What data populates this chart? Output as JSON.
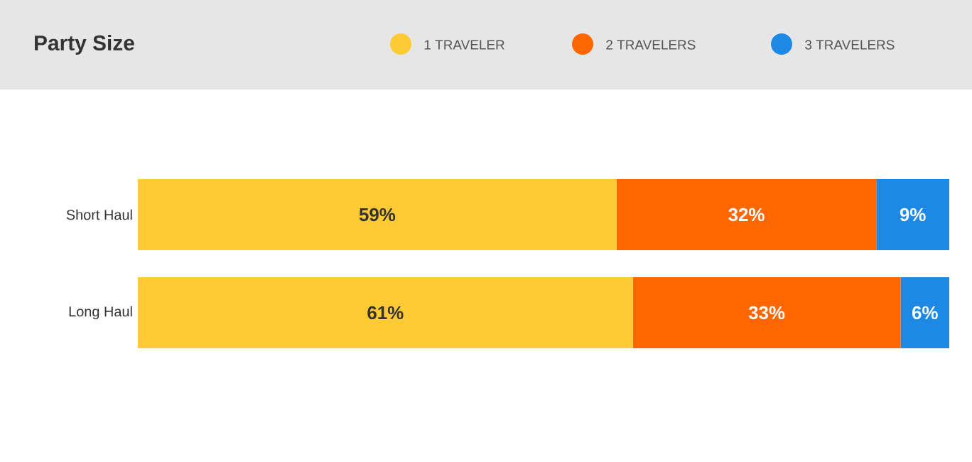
{
  "chart_data": {
    "type": "bar",
    "title": "Party Size",
    "orientation": "horizontal",
    "stacked": true,
    "categories": [
      "Short Haul",
      "Long Haul"
    ],
    "series": [
      {
        "name": "1 TRAVELER",
        "color": "#ffca33",
        "values": [
          59,
          61
        ],
        "value_labels": [
          "59%",
          "61%"
        ]
      },
      {
        "name": "2 TRAVELERS",
        "color": "#ff6600",
        "values": [
          32,
          33
        ],
        "value_labels": [
          "32%",
          "33%"
        ]
      },
      {
        "name": "3 TRAVELERS",
        "color": "#1e88e5",
        "values": [
          9,
          6
        ],
        "value_labels": [
          "9%",
          "6%"
        ]
      }
    ],
    "xlim": [
      0,
      100
    ],
    "tick_labels": "y",
    "legend": "top right"
  }
}
